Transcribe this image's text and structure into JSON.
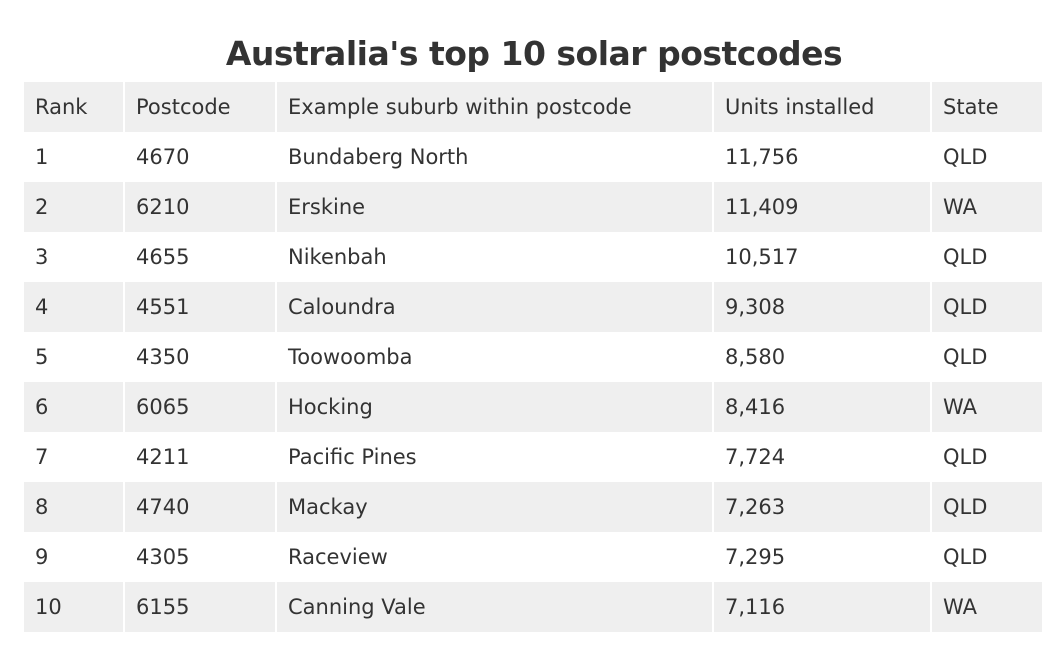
{
  "title": "Australia's top 10 solar postcodes",
  "table": {
    "headers": {
      "rank": "Rank",
      "postcode": "Postcode",
      "suburb": "Example suburb within postcode",
      "units": "Units installed",
      "state": "State"
    },
    "rows": [
      {
        "rank": "1",
        "postcode": "4670",
        "suburb": "Bundaberg North",
        "units": "11,756",
        "state": "QLD"
      },
      {
        "rank": "2",
        "postcode": "6210",
        "suburb": "Erskine",
        "units": "11,409",
        "state": "WA"
      },
      {
        "rank": "3",
        "postcode": "4655",
        "suburb": "Nikenbah",
        "units": "10,517",
        "state": "QLD"
      },
      {
        "rank": "4",
        "postcode": "4551",
        "suburb": "Caloundra",
        "units": "9,308",
        "state": "QLD"
      },
      {
        "rank": "5",
        "postcode": "4350",
        "suburb": "Toowoomba",
        "units": "8,580",
        "state": "QLD"
      },
      {
        "rank": "6",
        "postcode": "6065",
        "suburb": "Hocking",
        "units": "8,416",
        "state": "WA"
      },
      {
        "rank": "7",
        "postcode": "4211",
        "suburb": "Pacific Pines",
        "units": "7,724",
        "state": "QLD"
      },
      {
        "rank": "8",
        "postcode": "4740",
        "suburb": "Mackay",
        "units": "7,263",
        "state": "QLD"
      },
      {
        "rank": "9",
        "postcode": "4305",
        "suburb": "Raceview",
        "units": "7,295",
        "state": "QLD"
      },
      {
        "rank": "10",
        "postcode": "6155",
        "suburb": "Canning Vale",
        "units": "7,116",
        "state": "WA"
      }
    ]
  },
  "colors": {
    "text": "#333333",
    "stripe": "#efefef",
    "background": "#ffffff"
  }
}
